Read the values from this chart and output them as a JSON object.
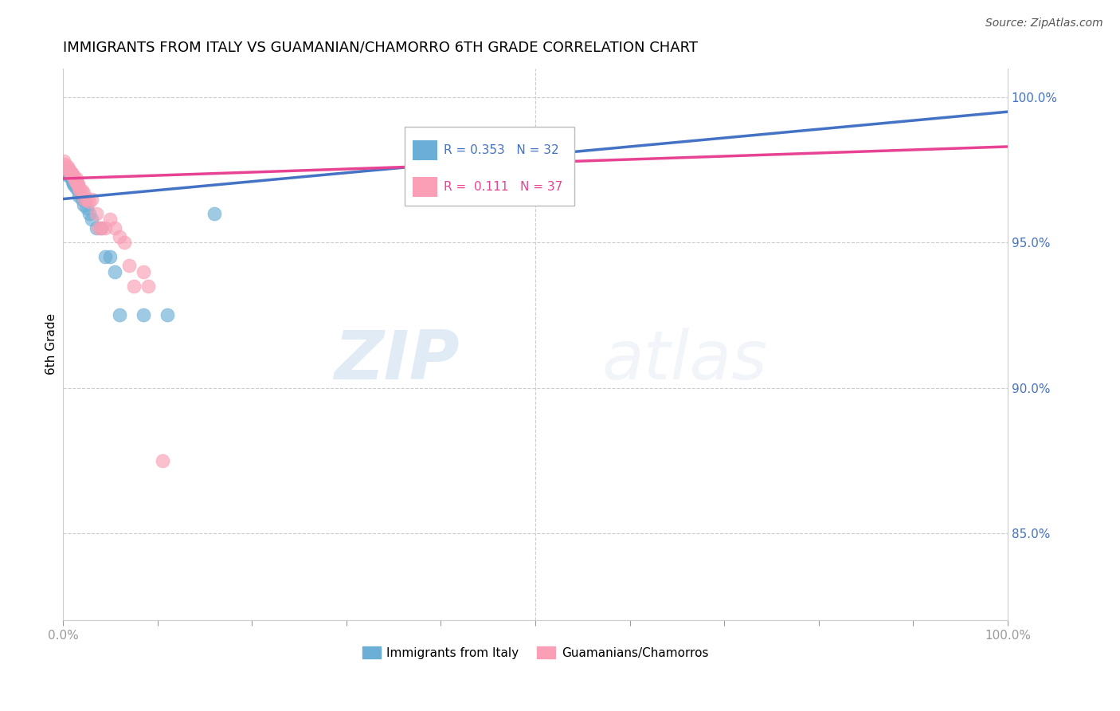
{
  "title": "IMMIGRANTS FROM ITALY VS GUAMANIAN/CHAMORRO 6TH GRADE CORRELATION CHART",
  "source_text": "Source: ZipAtlas.com",
  "ylabel": "6th Grade",
  "legend_label_blue": "Immigrants from Italy",
  "legend_label_pink": "Guamanians/Chamorros",
  "R_blue": 0.353,
  "N_blue": 32,
  "R_pink": 0.111,
  "N_pink": 37,
  "blue_color": "#6baed6",
  "pink_color": "#fa9fb5",
  "trendline_blue": "#4472c4",
  "trendline_pink": "#e84393",
  "watermark_zip": "ZIP",
  "watermark_atlas": "atlas",
  "xlim": [
    0.0,
    100.0
  ],
  "ylim": [
    82.0,
    101.0
  ],
  "ytick_vals": [
    85.0,
    90.0,
    95.0,
    100.0
  ],
  "ytick_labels": [
    "85.0%",
    "90.0%",
    "95.0%",
    "100.0%"
  ],
  "blue_x": [
    0.0,
    0.1,
    0.3,
    0.4,
    0.5,
    0.6,
    0.7,
    0.8,
    0.9,
    1.0,
    1.1,
    1.2,
    1.3,
    1.5,
    1.6,
    1.7,
    1.8,
    2.0,
    2.2,
    2.3,
    2.5,
    2.8,
    3.0,
    3.5,
    4.0,
    4.5,
    5.0,
    5.5,
    6.0,
    8.5,
    11.0,
    16.0
  ],
  "blue_y": [
    97.5,
    97.5,
    97.5,
    97.4,
    97.3,
    97.4,
    97.3,
    97.4,
    97.2,
    97.1,
    97.0,
    97.0,
    96.9,
    97.0,
    96.8,
    96.6,
    96.8,
    96.5,
    96.3,
    96.5,
    96.2,
    96.0,
    95.8,
    95.5,
    95.5,
    94.5,
    94.5,
    94.0,
    92.5,
    92.5,
    92.5,
    96.0
  ],
  "pink_x": [
    0.1,
    0.2,
    0.3,
    0.4,
    0.5,
    0.6,
    0.7,
    0.8,
    0.9,
    1.0,
    1.1,
    1.2,
    1.3,
    1.4,
    1.5,
    1.6,
    1.7,
    1.8,
    2.0,
    2.2,
    2.3,
    2.5,
    2.8,
    3.0,
    3.5,
    3.8,
    4.0,
    4.5,
    5.0,
    5.5,
    6.0,
    6.5,
    7.0,
    7.5,
    8.5,
    9.0,
    10.5
  ],
  "pink_y": [
    97.8,
    97.7,
    97.6,
    97.5,
    97.6,
    97.5,
    97.5,
    97.4,
    97.4,
    97.3,
    97.3,
    97.2,
    97.1,
    97.2,
    97.0,
    97.0,
    96.9,
    96.8,
    96.8,
    96.7,
    96.5,
    96.5,
    96.4,
    96.5,
    96.0,
    95.5,
    95.5,
    95.5,
    95.8,
    95.5,
    95.2,
    95.0,
    94.2,
    93.5,
    94.0,
    93.5,
    87.5
  ],
  "trendline_blue_start_y": 96.5,
  "trendline_blue_end_y": 99.5,
  "trendline_pink_start_y": 97.2,
  "trendline_pink_end_y": 98.3
}
